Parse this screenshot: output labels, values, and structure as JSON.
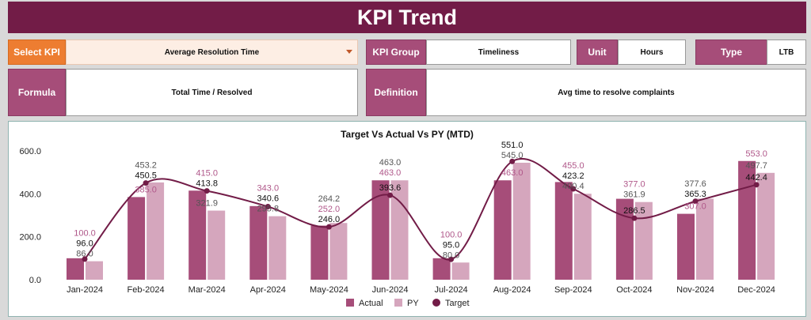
{
  "header": {
    "title": "KPI Trend"
  },
  "selector": {
    "label": "Select KPI",
    "value": "Average Resolution Time",
    "caret_icon": "dropdown-caret"
  },
  "kpi_group": {
    "label": "KPI Group",
    "value": "Timeliness"
  },
  "unit": {
    "label": "Unit",
    "value": "Hours"
  },
  "type": {
    "label": "Type",
    "value": "LTB"
  },
  "formula": {
    "label": "Formula",
    "value": "Total Time / Resolved"
  },
  "definition": {
    "label": "Definition",
    "value": "Avg time to resolve complaints"
  },
  "colors": {
    "title_bg": "#721c47",
    "label_bg": "#a64d79",
    "select_bg": "#ed7d31",
    "actual": "#a64d79",
    "py": "#d5a6bd",
    "target": "#721c47"
  },
  "chart_data": {
    "type": "bar",
    "title": "Target Vs Actual Vs PY (MTD)",
    "categories": [
      "Jan-2024",
      "Feb-2024",
      "Mar-2024",
      "Apr-2024",
      "May-2024",
      "Jun-2024",
      "Jul-2024",
      "Aug-2024",
      "Sep-2024",
      "Oct-2024",
      "Nov-2024",
      "Dec-2024"
    ],
    "series": [
      {
        "name": "Actual",
        "kind": "bar",
        "values": [
          100,
          385,
          415,
          343,
          252,
          463,
          100,
          463,
          455,
          377,
          307,
          553
        ]
      },
      {
        "name": "PY",
        "kind": "bar",
        "values": [
          86,
          453.2,
          321.9,
          295.8,
          264.2,
          463,
          80,
          545,
          400.4,
          361.9,
          377.6,
          497.7
        ]
      },
      {
        "name": "Target",
        "kind": "line",
        "values": [
          96,
          450.5,
          413.8,
          340.6,
          246,
          393.6,
          95,
          551,
          423.2,
          286.5,
          365.3,
          442.4
        ]
      }
    ],
    "yticks": [
      "0.0",
      "200.0",
      "400.0",
      "600.0"
    ],
    "ylim": [
      0,
      600
    ],
    "legend": "bottom",
    "grid": false
  }
}
